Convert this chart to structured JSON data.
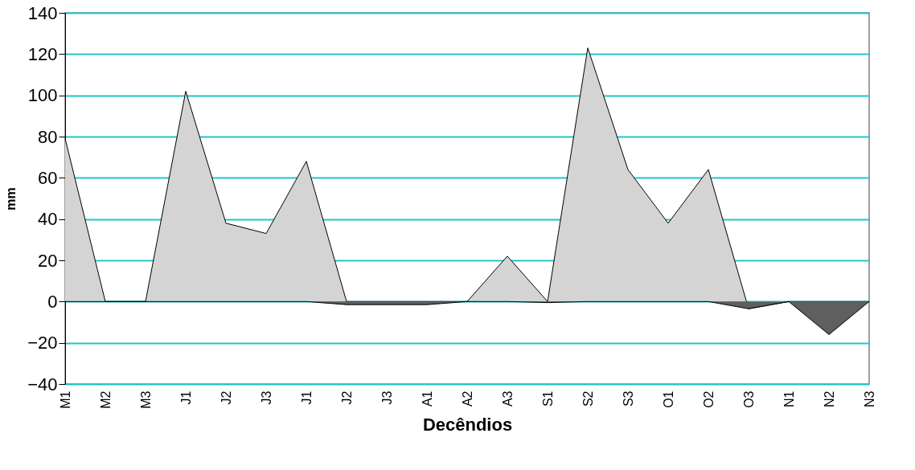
{
  "chart_data": {
    "type": "area",
    "xlabel": "Decêndios",
    "ylabel": "mm",
    "categories": [
      "M1",
      "M2",
      "M3",
      "J1",
      "J2",
      "J3",
      "J1",
      "J2",
      "J3",
      "A1",
      "A2",
      "A3",
      "S1",
      "S2",
      "S3",
      "O1",
      "O2",
      "O3",
      "N1",
      "N2",
      "N3"
    ],
    "series": [
      {
        "color": "#d4d4d4",
        "values": [
          79,
          0,
          0,
          102,
          38,
          33,
          68,
          0,
          0,
          0,
          0,
          22,
          0,
          123,
          64,
          38,
          64,
          -3.5,
          0,
          0,
          0
        ]
      },
      {
        "color": "#5f5f5f",
        "values": [
          0,
          0,
          0,
          0,
          0,
          0,
          0,
          -1.5,
          -1.5,
          -1.5,
          0,
          0,
          -0.5,
          0,
          0,
          0,
          0,
          -3.5,
          0,
          -16,
          0
        ]
      }
    ],
    "ylim": [
      -40,
      140
    ],
    "yticks": [
      -40,
      -20,
      0,
      20,
      40,
      60,
      80,
      100,
      120,
      140
    ],
    "grid": "y"
  }
}
